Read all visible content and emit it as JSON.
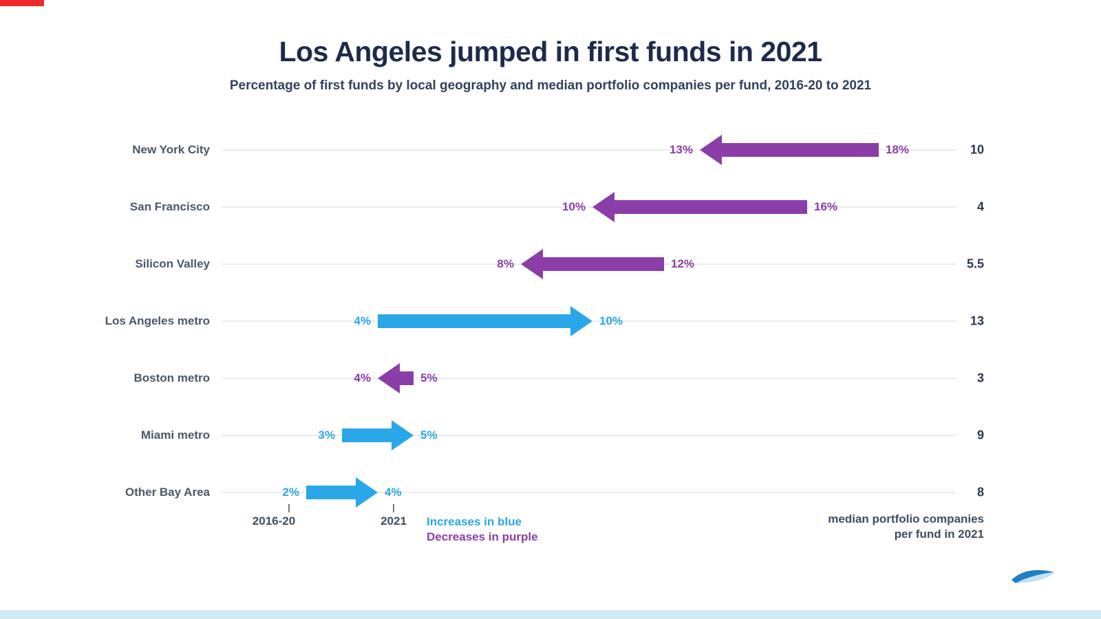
{
  "brand": {
    "top_bar_red": "#ee2b2b",
    "bottom_strip_blue": "#cfe9f8",
    "logo_blue": "#1e7fc2",
    "logo_light_blue": "#bfe3f5"
  },
  "header": {
    "title": "Los Angeles jumped in first funds in 2021",
    "subtitle": "Percentage of first funds by local geography and median portfolio companies per fund, 2016-20 to 2021"
  },
  "chart_data": {
    "type": "arrow",
    "unit": "%",
    "xlim": [
      0,
      20
    ],
    "grid": true,
    "period_start_label": "2016-20",
    "period_end_label": "2021",
    "increase_color": "#2aa7e8",
    "decrease_color": "#8b3da8",
    "legend": [
      {
        "label": "Increases in blue",
        "meaning": "increase"
      },
      {
        "label": "Decreases in purple",
        "meaning": "decrease"
      }
    ],
    "median_header": [
      "median portfolio companies",
      "per fund in 2021"
    ],
    "rows": [
      {
        "label": "New York City",
        "from": 18,
        "to": 13,
        "from_label": "18%",
        "to_label": "13%",
        "median": "10"
      },
      {
        "label": "San Francisco",
        "from": 16,
        "to": 10,
        "from_label": "16%",
        "to_label": "10%",
        "median": "4"
      },
      {
        "label": "Silicon Valley",
        "from": 12,
        "to": 8,
        "from_label": "12%",
        "to_label": "8%",
        "median": "5.5"
      },
      {
        "label": "Los Angeles metro",
        "from": 4,
        "to": 10,
        "from_label": "4%",
        "to_label": "10%",
        "median": "13"
      },
      {
        "label": "Boston metro",
        "from": 5,
        "to": 4,
        "from_label": "5%",
        "to_label": "4%",
        "median": "3"
      },
      {
        "label": "Miami metro",
        "from": 3,
        "to": 5,
        "from_label": "3%",
        "to_label": "5%",
        "median": "9"
      },
      {
        "label": "Other Bay Area",
        "from": 2,
        "to": 4,
        "from_label": "2%",
        "to_label": "4%",
        "median": "8"
      }
    ]
  }
}
